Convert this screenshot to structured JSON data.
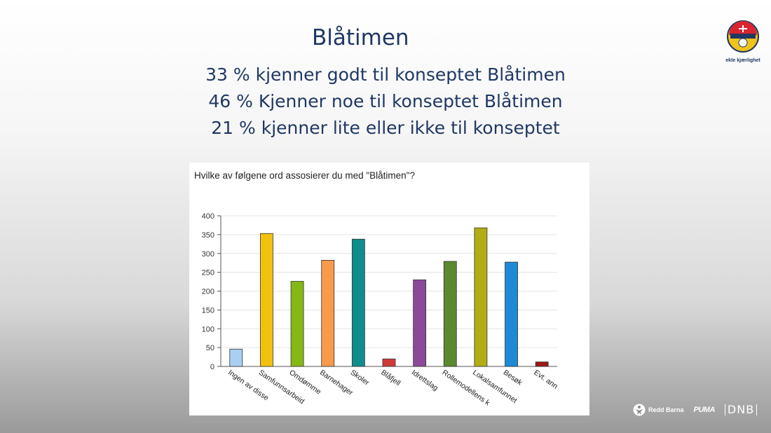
{
  "slide": {
    "title": "Blåtimen",
    "stats": [
      "33 % kjenner godt til konseptet Blåtimen",
      "46 % Kjenner noe til konseptet Blåtimen",
      "21 % kjenner lite eller ikke til konseptet"
    ],
    "logo_caption": "ekte kjærlighet"
  },
  "sponsors": {
    "redd_barna": "Redd Barna",
    "puma": "PUMA",
    "dnb": "DNB"
  },
  "chart_data": {
    "type": "bar",
    "title": "Hvilke av følgene ord assosierer du med \"Blåtimen\"?",
    "xlabel": "",
    "ylabel": "",
    "ylim": [
      0,
      400
    ],
    "yticks": [
      0,
      50,
      100,
      150,
      200,
      250,
      300,
      350,
      400
    ],
    "grid": true,
    "categories": [
      "Ingen av disse",
      "Samfunnsarbeid",
      "Omdømme",
      "Barnehager",
      "Skoler",
      "Blåfjell",
      "Idrettslag",
      "Rollemodellens k",
      "Lokalsamfunnet",
      "Besøk",
      "Evt. ann"
    ],
    "values": [
      46,
      353,
      226,
      282,
      338,
      20,
      230,
      279,
      368,
      277,
      12
    ],
    "colors": [
      "#a9cff2",
      "#f2c10e",
      "#84b816",
      "#f79a4a",
      "#0f8d8d",
      "#d23a3a",
      "#8a4a99",
      "#5b8a2e",
      "#b3ad14",
      "#1e8ad6",
      "#9e1717"
    ]
  }
}
